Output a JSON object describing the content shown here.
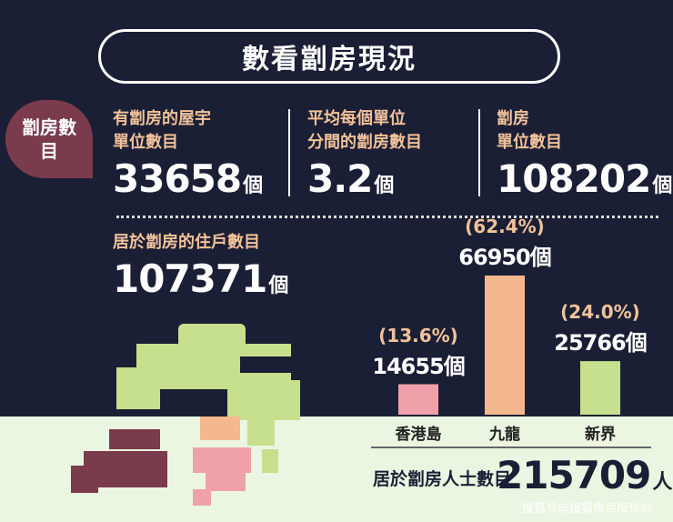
{
  "title": "數看劏房現況",
  "badge": "劏房數目",
  "stats": [
    {
      "label1": "有劏房的屋宇",
      "label2": "單位數目",
      "value": "33658",
      "unit": "個"
    },
    {
      "label1": "平均每個單位",
      "label2": "分間的劏房數目",
      "value": "3.2",
      "unit": "個"
    },
    {
      "label1": "劏房",
      "label2": "單位數目",
      "value": "108202",
      "unit": "個"
    }
  ],
  "households": {
    "label": "居於劏房的住戶數目",
    "value": "107371",
    "unit": "個"
  },
  "population": {
    "label": "居於劏房人士數目",
    "value": "215709",
    "unit": "人"
  },
  "watermark": "搜狐号@搜狐焦点梅州站",
  "colors": {
    "background": "#1b1f35",
    "hk_island": "#f0a0aa",
    "kowloon": "#f4b88f",
    "new_territories": "#c6e08e",
    "accent_text": "#f2c299"
  },
  "chart_data": {
    "type": "bar",
    "title": "",
    "xlabel": "",
    "ylabel": "",
    "categories": [
      "香港島",
      "九龍",
      "新界"
    ],
    "values": [
      14655,
      66950,
      25766
    ],
    "units": [
      "個",
      "個",
      "個"
    ],
    "percent_labels": [
      "(13.6%)",
      "(62.4%)",
      "(24.0%)"
    ],
    "ylim": [
      0,
      70000
    ],
    "grid": false,
    "legend": "none"
  }
}
